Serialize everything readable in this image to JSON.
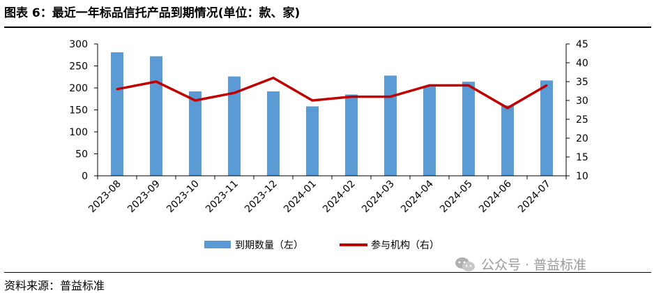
{
  "header": {
    "title": "图表 6：最近一年标品信托产品到期情况(单位：款、家)"
  },
  "footer": {
    "source": "资料来源：普益标准"
  },
  "watermark": {
    "text": "公众号 · 普益标准",
    "icon": "wechat-icon"
  },
  "chart_data": {
    "type": "bar",
    "title": "",
    "categories": [
      "2023-08",
      "2023-09",
      "2023-10",
      "2023-11",
      "2023-12",
      "2024-01",
      "2024-02",
      "2024-03",
      "2024-04",
      "2024-05",
      "2024-06",
      "2024-07"
    ],
    "series": [
      {
        "name": "到期数量（左）",
        "type": "bar",
        "axis": "left",
        "color": "#5B9BD5",
        "values": [
          281,
          272,
          192,
          226,
          192,
          158,
          185,
          228,
          203,
          214,
          160,
          217
        ]
      },
      {
        "name": "参与机构（右）",
        "type": "line",
        "axis": "right",
        "color": "#C00000",
        "values": [
          33,
          35,
          30,
          32,
          36,
          30,
          31,
          31,
          34,
          34,
          28,
          34
        ]
      }
    ],
    "y_left": {
      "min": 0,
      "max": 300,
      "step": 50
    },
    "y_right": {
      "min": 10,
      "max": 45,
      "step": 5
    },
    "grid": false,
    "legend": "bottom"
  }
}
